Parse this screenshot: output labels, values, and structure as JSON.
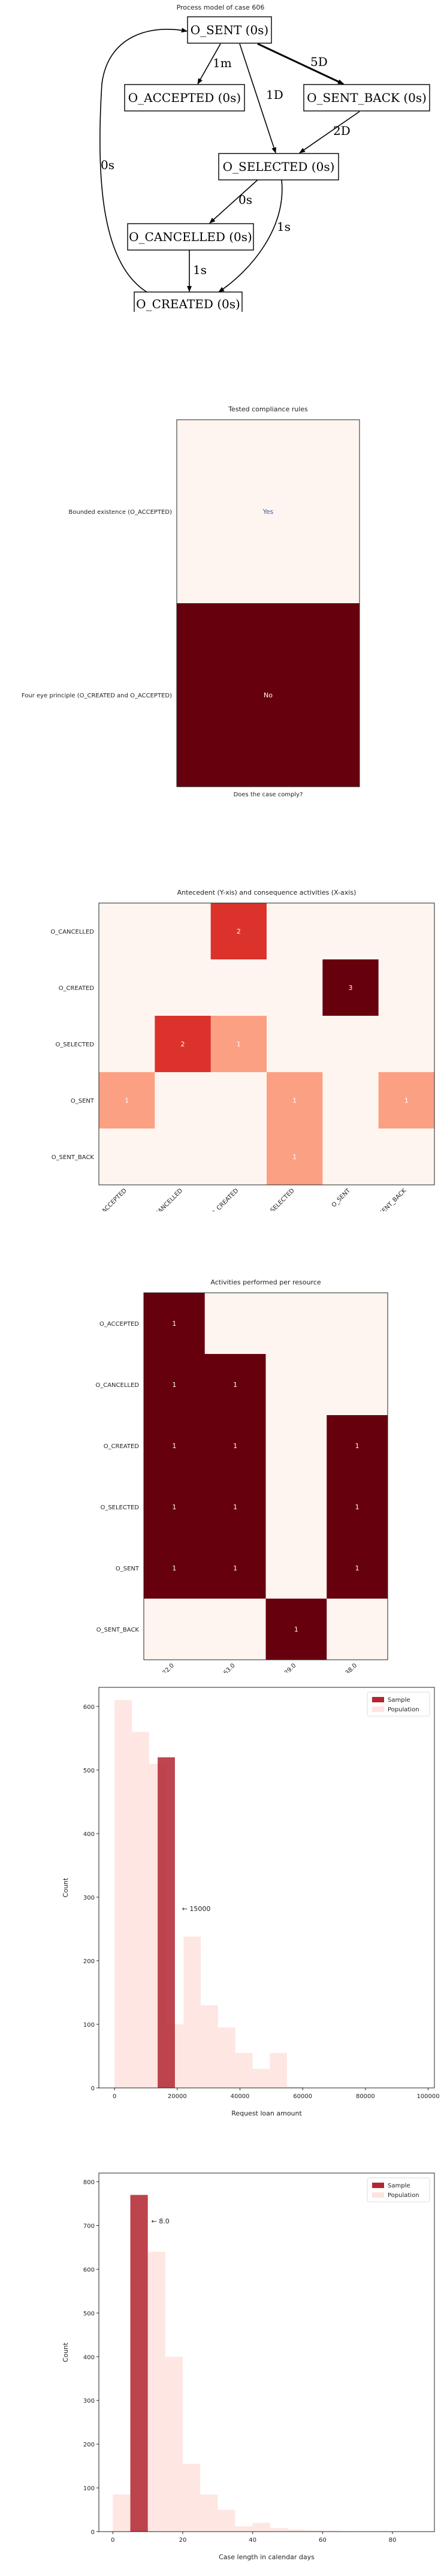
{
  "process_model": {
    "title": "Process model of case 606",
    "nodes": [
      {
        "id": "sent",
        "label": "O_SENT (0s)"
      },
      {
        "id": "accepted",
        "label": "O_ACCEPTED (0s)"
      },
      {
        "id": "sent_back",
        "label": "O_SENT_BACK (0s)"
      },
      {
        "id": "selected",
        "label": "O_SELECTED (0s)"
      },
      {
        "id": "cancelled",
        "label": "O_CANCELLED (0s)"
      },
      {
        "id": "created",
        "label": "O_CREATED (0s)"
      }
    ],
    "edges": [
      {
        "from": "sent",
        "to": "accepted",
        "label": "1m"
      },
      {
        "from": "sent",
        "to": "selected",
        "label": "1D"
      },
      {
        "from": "sent",
        "to": "sent_back",
        "label": "5D"
      },
      {
        "from": "sent_back",
        "to": "selected",
        "label": "2D"
      },
      {
        "from": "selected",
        "to": "cancelled",
        "label": "0s"
      },
      {
        "from": "selected",
        "to": "created",
        "label": "1s"
      },
      {
        "from": "cancelled",
        "to": "created",
        "label": "1s"
      },
      {
        "from": "created",
        "to": "sent",
        "label": "0s"
      }
    ]
  },
  "chart_data": [
    {
      "type": "heatmap",
      "title": "Tested compliance rules",
      "xlabel": "Does the case comply?",
      "ylabel": "",
      "rows": [
        "Bounded existence (O_ACCEPTED)",
        "Four eye principle (O_CREATED and O_ACCEPTED)"
      ],
      "columns": [
        ""
      ],
      "values": [
        [
          0
        ],
        [
          1
        ]
      ],
      "cell_labels": [
        [
          "Yes"
        ],
        [
          "No"
        ]
      ],
      "colormap": "Reds"
    },
    {
      "type": "heatmap",
      "title": "Antecedent (Y-xis) and consequence activities (X-axis)",
      "xlabel": "",
      "ylabel": "",
      "rows": [
        "O_CANCELLED",
        "O_CREATED",
        "O_SELECTED",
        "O_SENT",
        "O_SENT_BACK"
      ],
      "columns": [
        "O_ACCEPTED",
        "O_CANCELLED",
        "O_CREATED",
        "O_SELECTED",
        "O_SENT",
        "O_SENT_BACK"
      ],
      "values": [
        [
          null,
          null,
          2,
          null,
          null,
          null
        ],
        [
          null,
          null,
          null,
          null,
          3,
          null
        ],
        [
          null,
          2,
          1,
          null,
          null,
          null
        ],
        [
          1,
          null,
          null,
          1,
          null,
          1
        ],
        [
          null,
          null,
          null,
          1,
          null,
          null
        ]
      ],
      "vmax": 3,
      "colormap": "Reds"
    },
    {
      "type": "heatmap",
      "title": "Activities performed per resource",
      "xlabel": "",
      "ylabel": "",
      "rows": [
        "O_ACCEPTED",
        "O_CANCELLED",
        "O_CREATED",
        "O_SELECTED",
        "O_SENT",
        "O_SENT_BACK"
      ],
      "columns": [
        "11122.0",
        "10863.0",
        "11029.0",
        "10138.0"
      ],
      "values": [
        [
          1,
          null,
          null,
          null
        ],
        [
          1,
          1,
          null,
          null
        ],
        [
          1,
          1,
          null,
          1
        ],
        [
          1,
          1,
          null,
          1
        ],
        [
          1,
          1,
          null,
          1
        ],
        [
          null,
          null,
          1,
          null
        ]
      ],
      "vmax": 1,
      "colormap": "Reds"
    },
    {
      "type": "bar",
      "title": "",
      "xlabel": "Request loan amount",
      "ylabel": "Count",
      "xlim": [
        -5000,
        102000
      ],
      "ylim": [
        0,
        630
      ],
      "xticks": [
        0,
        20000,
        40000,
        60000,
        80000,
        100000
      ],
      "yticks": [
        0,
        100,
        200,
        300,
        400,
        500,
        600
      ],
      "legend": [
        "Sample",
        "Population"
      ],
      "legend_position": "top-right",
      "annotation": "← 15000",
      "annotation_at": {
        "x": 21500,
        "y": 278
      },
      "series": [
        {
          "name": "Population",
          "bin_width": 5500,
          "bins": [
            {
              "x": 0,
              "value": 610
            },
            {
              "x": 5500,
              "value": 560
            },
            {
              "x": 11000,
              "value": 510
            },
            {
              "x": 16500,
              "value": 100
            },
            {
              "x": 22000,
              "value": 238
            },
            {
              "x": 27500,
              "value": 130
            },
            {
              "x": 33000,
              "value": 95
            },
            {
              "x": 38500,
              "value": 55
            },
            {
              "x": 44000,
              "value": 30
            },
            {
              "x": 49500,
              "value": 55
            },
            {
              "x": 55000,
              "value": 2
            }
          ]
        },
        {
          "name": "Sample",
          "bin_width": 5500,
          "bins": [
            {
              "x": 13750,
              "value": 520
            }
          ]
        }
      ]
    },
    {
      "type": "bar",
      "title": "",
      "xlabel": "Case length in calendar days",
      "ylabel": "Count",
      "xlim": [
        -4,
        92
      ],
      "ylim": [
        0,
        820
      ],
      "xticks": [
        0,
        20,
        40,
        60,
        80
      ],
      "yticks": [
        0,
        100,
        200,
        300,
        400,
        500,
        600,
        700,
        800
      ],
      "legend": [
        "Sample",
        "Population"
      ],
      "legend_position": "top-right",
      "annotation": "← 8.0",
      "annotation_at": {
        "x": 11,
        "y": 705
      },
      "series": [
        {
          "name": "Population",
          "bin_width": 5,
          "bins": [
            {
              "x": 0,
              "value": 85
            },
            {
              "x": 5,
              "value": 770
            },
            {
              "x": 10,
              "value": 640
            },
            {
              "x": 15,
              "value": 400
            },
            {
              "x": 20,
              "value": 155
            },
            {
              "x": 25,
              "value": 85
            },
            {
              "x": 30,
              "value": 50
            },
            {
              "x": 35,
              "value": 12
            },
            {
              "x": 40,
              "value": 20
            },
            {
              "x": 45,
              "value": 8
            },
            {
              "x": 50,
              "value": 5
            },
            {
              "x": 55,
              "value": 3
            },
            {
              "x": 60,
              "value": 2
            },
            {
              "x": 65,
              "value": 1
            }
          ]
        },
        {
          "name": "Sample",
          "bin_width": 5,
          "bins": [
            {
              "x": 5,
              "value": 770
            }
          ]
        }
      ]
    }
  ],
  "colors": {
    "sample": "#b22631",
    "population": "#fee3e0",
    "reds_low": "#fff5f0",
    "reds_high": "#67000d"
  }
}
